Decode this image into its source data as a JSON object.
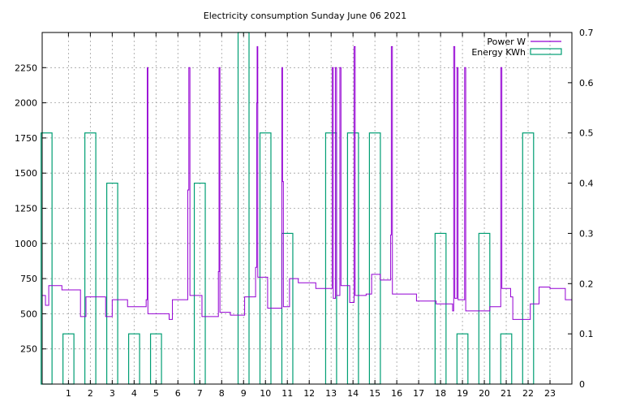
{
  "chart_data": {
    "type": "line",
    "title": "Electricity consumption Sunday June 06 2021",
    "xlabel": "",
    "ylabel": "",
    "xlim": [
      -0.2,
      24
    ],
    "ylim": [
      0,
      2500
    ],
    "y2lim": [
      0,
      0.7
    ],
    "xticks": [
      1,
      2,
      3,
      4,
      5,
      6,
      7,
      8,
      9,
      10,
      11,
      12,
      13,
      14,
      15,
      16,
      17,
      18,
      19,
      20,
      21,
      22,
      23
    ],
    "yticks": [
      250,
      500,
      750,
      1000,
      1250,
      1500,
      1750,
      2000,
      2250
    ],
    "y2ticks": [
      0,
      0.1,
      0.2,
      0.3,
      0.4,
      0.5,
      0.6,
      0.7
    ],
    "grid": true,
    "legend": "top-right",
    "colors": {
      "power": "#9400d3",
      "energy": "#009e73"
    },
    "series": [
      {
        "name": "Power W",
        "axis": "y",
        "style": "steps",
        "points": [
          [
            -0.2,
            630
          ],
          [
            -0.05,
            560
          ],
          [
            0.1,
            700
          ],
          [
            0.7,
            670
          ],
          [
            1.5,
            670
          ],
          [
            1.55,
            480
          ],
          [
            1.8,
            620
          ],
          [
            2.5,
            620
          ],
          [
            2.7,
            480
          ],
          [
            3.0,
            600
          ],
          [
            3.5,
            600
          ],
          [
            3.7,
            550
          ],
          [
            4.5,
            550
          ],
          [
            4.55,
            600
          ],
          [
            4.6,
            2250
          ],
          [
            4.63,
            500
          ],
          [
            5.5,
            500
          ],
          [
            5.6,
            460
          ],
          [
            5.75,
            600
          ],
          [
            6.4,
            600
          ],
          [
            6.45,
            1380
          ],
          [
            6.5,
            2250
          ],
          [
            6.55,
            630
          ],
          [
            7.0,
            630
          ],
          [
            7.1,
            480
          ],
          [
            7.8,
            480
          ],
          [
            7.85,
            800
          ],
          [
            7.88,
            2250
          ],
          [
            7.92,
            510
          ],
          [
            8.3,
            510
          ],
          [
            8.4,
            490
          ],
          [
            9.0,
            490
          ],
          [
            9.05,
            620
          ],
          [
            9.5,
            620
          ],
          [
            9.55,
            830
          ],
          [
            9.6,
            2000
          ],
          [
            9.62,
            2400
          ],
          [
            9.65,
            760
          ],
          [
            10.0,
            760
          ],
          [
            10.1,
            540
          ],
          [
            10.7,
            540
          ],
          [
            10.75,
            2250
          ],
          [
            10.78,
            1440
          ],
          [
            10.82,
            550
          ],
          [
            11.1,
            750
          ],
          [
            11.5,
            720
          ],
          [
            12.2,
            720
          ],
          [
            12.3,
            680
          ],
          [
            13.0,
            680
          ],
          [
            13.05,
            2250
          ],
          [
            13.1,
            610
          ],
          [
            13.2,
            2250
          ],
          [
            13.25,
            630
          ],
          [
            13.4,
            2250
          ],
          [
            13.45,
            700
          ],
          [
            13.8,
            700
          ],
          [
            13.85,
            580
          ],
          [
            14.05,
            2400
          ],
          [
            14.1,
            630
          ],
          [
            14.5,
            630
          ],
          [
            14.6,
            640
          ],
          [
            14.8,
            640
          ],
          [
            14.85,
            780
          ],
          [
            15.2,
            780
          ],
          [
            15.25,
            740
          ],
          [
            15.7,
            740
          ],
          [
            15.72,
            1060
          ],
          [
            15.75,
            2400
          ],
          [
            15.8,
            640
          ],
          [
            16.8,
            640
          ],
          [
            16.9,
            590
          ],
          [
            17.7,
            590
          ],
          [
            17.8,
            570
          ],
          [
            18.5,
            570
          ],
          [
            18.55,
            520
          ],
          [
            18.6,
            2400
          ],
          [
            18.65,
            610
          ],
          [
            18.75,
            2250
          ],
          [
            18.8,
            600
          ],
          [
            19.0,
            600
          ],
          [
            19.1,
            2250
          ],
          [
            19.15,
            520
          ],
          [
            20.2,
            520
          ],
          [
            20.25,
            550
          ],
          [
            20.7,
            550
          ],
          [
            20.75,
            2250
          ],
          [
            20.8,
            680
          ],
          [
            21.1,
            680
          ],
          [
            21.2,
            620
          ],
          [
            21.3,
            460
          ],
          [
            22.0,
            460
          ],
          [
            22.1,
            570
          ],
          [
            22.4,
            570
          ],
          [
            22.5,
            690
          ],
          [
            22.9,
            690
          ],
          [
            23.0,
            680
          ],
          [
            23.6,
            680
          ],
          [
            23.7,
            600
          ],
          [
            24.0,
            600
          ]
        ]
      },
      {
        "name": "Energy KWh",
        "axis": "y2",
        "style": "bars",
        "bar_width": 0.5,
        "x": [
          0,
          1,
          2,
          3,
          4,
          5,
          6,
          7,
          8,
          9,
          10,
          11,
          12,
          13,
          14,
          15,
          16,
          17,
          18,
          19,
          20,
          21,
          22,
          23
        ],
        "values": [
          0.5,
          0.1,
          0.5,
          0.4,
          0.1,
          0.1,
          0,
          0.4,
          0,
          0.7,
          0.5,
          0.3,
          0,
          0.5,
          0.5,
          0.5,
          0,
          0,
          0.3,
          0.1,
          0.3,
          0.1,
          0.5,
          0
        ]
      }
    ]
  }
}
